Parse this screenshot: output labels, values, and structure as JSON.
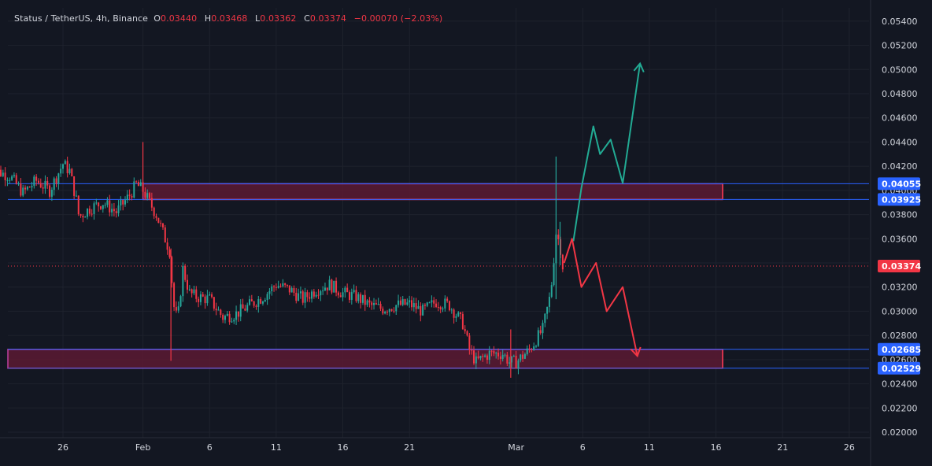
{
  "header": {
    "symbol": "Status / TetherUS, 4h, Binance",
    "o_label": "O",
    "o_value": "0.03440",
    "h_label": "H",
    "h_value": "0.03468",
    "l_label": "L",
    "l_value": "0.03362",
    "c_label": "C",
    "c_value": "0.03374",
    "change": "−0.00070 (−2.03%)"
  },
  "colors": {
    "background": "#131722",
    "grid": "#1e222d",
    "up": "#26a69a",
    "down": "#f23645",
    "zone_fill": "#5c1a33",
    "zone_border": "#c040a0",
    "level_line": "#2962ff",
    "badge_blue": "#2962ff",
    "price_badge": "#f23645",
    "arrow_up": "#22ab94",
    "arrow_down": "#f23645",
    "text": "#d1d4dc"
  },
  "chart_data": {
    "type": "candlestick",
    "y_axis": {
      "min": 0.02,
      "max": 0.055,
      "ticks": [
        "0.05400",
        "0.05200",
        "0.05000",
        "0.04800",
        "0.04600",
        "0.04400",
        "0.04200",
        "0.04000",
        "0.03800",
        "0.03600",
        "0.03400",
        "0.03200",
        "0.03000",
        "0.02800",
        "0.02600",
        "0.02400",
        "0.02200",
        "0.02000"
      ]
    },
    "x_axis": {
      "start_day": -11,
      "end_day": 53,
      "ticks": [
        {
          "label": "26",
          "day": -6
        },
        {
          "label": "Feb",
          "day": 0
        },
        {
          "label": "6",
          "day": 5
        },
        {
          "label": "11",
          "day": 10
        },
        {
          "label": "16",
          "day": 15
        },
        {
          "label": "21",
          "day": 20
        },
        {
          "label": "Mar",
          "day": 28
        },
        {
          "label": "6",
          "day": 33
        },
        {
          "label": "11",
          "day": 38
        },
        {
          "label": "16",
          "day": 43
        },
        {
          "label": "21",
          "day": 48
        },
        {
          "label": "26",
          "day": 53
        }
      ]
    },
    "price_path": [
      {
        "day": -11.5,
        "price": 0.0418
      },
      {
        "day": -10,
        "price": 0.0412
      },
      {
        "day": -9,
        "price": 0.0398
      },
      {
        "day": -8,
        "price": 0.0408
      },
      {
        "day": -7,
        "price": 0.04
      },
      {
        "day": -6,
        "price": 0.0422
      },
      {
        "day": -5.5,
        "price": 0.0416
      },
      {
        "day": -5,
        "price": 0.0392
      },
      {
        "day": -4.8,
        "price": 0.0378
      },
      {
        "day": -4,
        "price": 0.0385
      },
      {
        "day": -3,
        "price": 0.039
      },
      {
        "day": -2,
        "price": 0.0382
      },
      {
        "day": -1,
        "price": 0.0396
      },
      {
        "day": -0.5,
        "price": 0.0405
      },
      {
        "day": 0,
        "price": 0.04
      },
      {
        "day": 0.5,
        "price": 0.039
      },
      {
        "day": 1,
        "price": 0.038
      },
      {
        "day": 1.5,
        "price": 0.0365
      },
      {
        "day": 2,
        "price": 0.035
      },
      {
        "day": 2.3,
        "price": 0.0305
      },
      {
        "day": 2.6,
        "price": 0.0292
      },
      {
        "day": 3,
        "price": 0.0335
      },
      {
        "day": 3.5,
        "price": 0.0315
      },
      {
        "day": 4,
        "price": 0.0312
      },
      {
        "day": 5,
        "price": 0.031
      },
      {
        "day": 6,
        "price": 0.0295
      },
      {
        "day": 7,
        "price": 0.0298
      },
      {
        "day": 8,
        "price": 0.0305
      },
      {
        "day": 9,
        "price": 0.0312
      },
      {
        "day": 10,
        "price": 0.0322
      },
      {
        "day": 11,
        "price": 0.0318
      },
      {
        "day": 12,
        "price": 0.031
      },
      {
        "day": 13,
        "price": 0.0318
      },
      {
        "day": 14,
        "price": 0.0322
      },
      {
        "day": 15,
        "price": 0.0315
      },
      {
        "day": 16,
        "price": 0.0312
      },
      {
        "day": 17,
        "price": 0.0305
      },
      {
        "day": 18,
        "price": 0.0302
      },
      {
        "day": 19,
        "price": 0.0305
      },
      {
        "day": 20,
        "price": 0.0306
      },
      {
        "day": 21,
        "price": 0.03
      },
      {
        "day": 22,
        "price": 0.0308
      },
      {
        "day": 23,
        "price": 0.0305
      },
      {
        "day": 24,
        "price": 0.029
      },
      {
        "day": 24.5,
        "price": 0.0268
      },
      {
        "day": 25,
        "price": 0.0258
      },
      {
        "day": 26,
        "price": 0.0265
      },
      {
        "day": 27,
        "price": 0.0265
      },
      {
        "day": 27.5,
        "price": 0.0258
      },
      {
        "day": 28,
        "price": 0.0258
      },
      {
        "day": 29,
        "price": 0.0268
      },
      {
        "day": 30,
        "price": 0.0285
      },
      {
        "day": 30.6,
        "price": 0.0315
      },
      {
        "day": 31,
        "price": 0.0365
      },
      {
        "day": 31.3,
        "price": 0.0355
      },
      {
        "day": 31.5,
        "price": 0.03374
      }
    ],
    "notable_wicks": [
      {
        "day": 0,
        "high": 0.044,
        "low": 0.0395
      },
      {
        "day": 2.1,
        "high": 0.0352,
        "low": 0.0259
      },
      {
        "day": 31.0,
        "high": 0.0428,
        "low": 0.031
      },
      {
        "day": 27.6,
        "high": 0.0285,
        "low": 0.0245
      },
      {
        "day": 31.3,
        "high": 0.0374,
        "low": 0.0338
      }
    ],
    "zones": [
      {
        "top": 0.04055,
        "bottom": 0.03925,
        "start_day": 0,
        "end_day": 43.5
      },
      {
        "top": 0.02685,
        "bottom": 0.02529,
        "start_day": -11.5,
        "end_day": 43.5
      }
    ],
    "levels": [
      "0.04055",
      "0.03925",
      "0.02685",
      "0.02529"
    ],
    "current_price": "0.03374",
    "bullish_path": [
      {
        "day": 32.3,
        "price": 0.0358
      },
      {
        "day": 32.9,
        "price": 0.0402
      },
      {
        "day": 33.8,
        "price": 0.0453
      },
      {
        "day": 34.3,
        "price": 0.043
      },
      {
        "day": 35.1,
        "price": 0.0442
      },
      {
        "day": 36.0,
        "price": 0.0406
      },
      {
        "day": 37.3,
        "price": 0.0505
      }
    ],
    "bearish_path": [
      {
        "day": 31.6,
        "price": 0.034
      },
      {
        "day": 32.2,
        "price": 0.036
      },
      {
        "day": 32.9,
        "price": 0.032
      },
      {
        "day": 34.0,
        "price": 0.034
      },
      {
        "day": 34.8,
        "price": 0.03
      },
      {
        "day": 36.0,
        "price": 0.032
      },
      {
        "day": 37.1,
        "price": 0.0263
      }
    ]
  }
}
